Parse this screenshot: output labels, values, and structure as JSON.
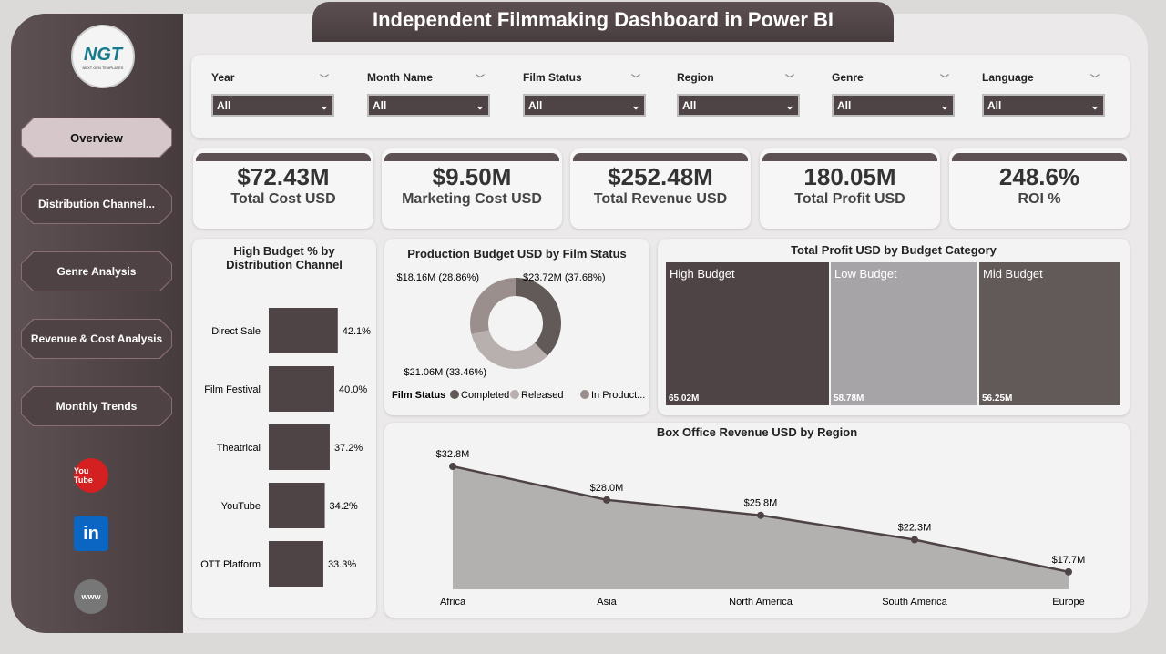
{
  "header": {
    "title": "Independent Filmmaking Dashboard in Power BI"
  },
  "logo": {
    "text": "NGT",
    "subtext": "NEXT GEN TEMPLATES"
  },
  "sidebar": {
    "items": [
      {
        "label": "Overview",
        "active": true
      },
      {
        "label": "Distribution Channel..."
      },
      {
        "label": "Genre Analysis"
      },
      {
        "label": "Revenue & Cost Analysis"
      },
      {
        "label": "Monthly Trends"
      }
    ],
    "social": [
      {
        "icon": "youtube-icon",
        "label": "You Tube",
        "color": "#d42020"
      },
      {
        "icon": "linkedin-icon",
        "label": "in",
        "color": "#0a66c2"
      },
      {
        "icon": "web-icon",
        "label": "www",
        "color": "#777"
      }
    ]
  },
  "filters": [
    {
      "label": "Year",
      "value": "All"
    },
    {
      "label": "Month Name",
      "value": "All"
    },
    {
      "label": "Film Status",
      "value": "All"
    },
    {
      "label": "Region",
      "value": "All"
    },
    {
      "label": "Genre",
      "value": "All"
    },
    {
      "label": "Language",
      "value": "All"
    }
  ],
  "kpis": [
    {
      "value": "$72.43M",
      "label": "Total Cost USD"
    },
    {
      "value": "$9.50M",
      "label": "Marketing Cost USD"
    },
    {
      "value": "$252.48M",
      "label": "Total Revenue USD"
    },
    {
      "value": "180.05M",
      "label": "Total Profit USD"
    },
    {
      "value": "248.6%",
      "label": "ROI %"
    }
  ],
  "colors": {
    "dark": "#4e4345",
    "mid": "#625a58",
    "light": "#a7a4a8",
    "donut": [
      "#625a58",
      "#b8b0ae",
      "#9a8f8c"
    ]
  },
  "chart_data": [
    {
      "type": "bar",
      "orientation": "horizontal",
      "title": "High Budget % by Distribution Channel",
      "categories": [
        "Direct Sale",
        "Film Festival",
        "Theatrical",
        "YouTube",
        "OTT Platform"
      ],
      "values": [
        42.1,
        40.0,
        37.2,
        34.2,
        33.3
      ],
      "labels": [
        "42.1%",
        "40.0%",
        "37.2%",
        "34.2%",
        "33.3%"
      ]
    },
    {
      "type": "pie",
      "donut": true,
      "title": "Production Budget USD by Film Status",
      "legend_title": "Film Status",
      "categories": [
        "Completed",
        "Released",
        "In Product..."
      ],
      "values": [
        23.72,
        21.06,
        18.16
      ],
      "labels": [
        "$23.72M (37.68%)",
        "$21.06M (33.46%)",
        "$18.16M (28.86%)"
      ],
      "legend": "bottom"
    },
    {
      "type": "treemap",
      "title": "Total Profit USD by Budget Category",
      "categories": [
        "High Budget",
        "Low Budget",
        "Mid Budget"
      ],
      "values": [
        65.02,
        58.78,
        56.25
      ],
      "labels": [
        "65.02M",
        "58.78M",
        "56.25M"
      ]
    },
    {
      "type": "area",
      "title": "Box Office Revenue USD by Region",
      "categories": [
        "Africa",
        "Asia",
        "North America",
        "South America",
        "Europe"
      ],
      "values": [
        32.8,
        28.0,
        25.8,
        22.3,
        17.7
      ],
      "labels": [
        "$32.8M",
        "$28.0M",
        "$25.8M",
        "$22.3M",
        "$17.7M"
      ],
      "ylim": [
        15.2,
        32.8
      ]
    }
  ]
}
